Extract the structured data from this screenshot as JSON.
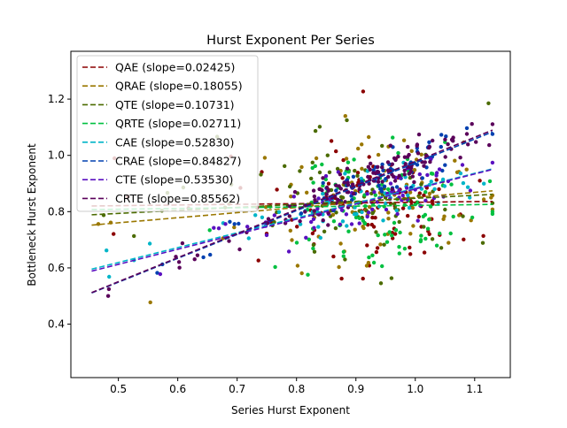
{
  "chart_data": {
    "type": "scatter",
    "title": "Hurst Exponent Per Series",
    "xlabel": "Series Hurst Exponent",
    "ylabel": "Bottleneck Hurst Exponent",
    "xlim": [
      0.42,
      1.16
    ],
    "ylim": [
      0.21,
      1.37
    ],
    "xticks": [
      0.5,
      0.6,
      0.7,
      0.8,
      0.9,
      1.0,
      1.1
    ],
    "xtick_labels": [
      "0.5",
      "0.6",
      "0.7",
      "0.8",
      "0.9",
      "1.0",
      "1.1"
    ],
    "yticks": [
      0.4,
      0.6,
      0.8,
      1.0,
      1.2
    ],
    "ytick_labels": [
      "0.4",
      "0.6",
      "0.8",
      "1.0",
      "1.2"
    ],
    "legend_position": "upper-left",
    "x_range": [
      0.455,
      1.13
    ],
    "series": [
      {
        "name": "QAE (slope=0.02425)",
        "color": "#8b0000",
        "fit": {
          "slope": 0.02425,
          "intercept": 0.809
        }
      },
      {
        "name": "QRAE (slope=0.18055)",
        "color": "#9a7700",
        "fit": {
          "slope": 0.18055,
          "intercept": 0.67
        }
      },
      {
        "name": "QTE (slope=0.10731)",
        "color": "#4b6b00",
        "fit": {
          "slope": 0.10731,
          "intercept": 0.74
        }
      },
      {
        "name": "QRTE (slope=0.02711)",
        "color": "#00c040",
        "fit": {
          "slope": 0.02711,
          "intercept": 0.795
        }
      },
      {
        "name": "CAE (slope=0.52830)",
        "color": "#00b5c8",
        "fit": {
          "slope": 0.5283,
          "intercept": 0.355
        }
      },
      {
        "name": "CRAE (slope=0.84827)",
        "color": "#0040b0",
        "fit": {
          "slope": 0.84827,
          "intercept": 0.125
        }
      },
      {
        "name": "CTE (slope=0.53530)",
        "color": "#5a10c0",
        "fit": {
          "slope": 0.5353,
          "intercept": 0.345
        }
      },
      {
        "name": "CRTE (slope=0.85562)",
        "color": "#5a005a",
        "fit": {
          "slope": 0.85562,
          "intercept": 0.123
        }
      }
    ]
  }
}
